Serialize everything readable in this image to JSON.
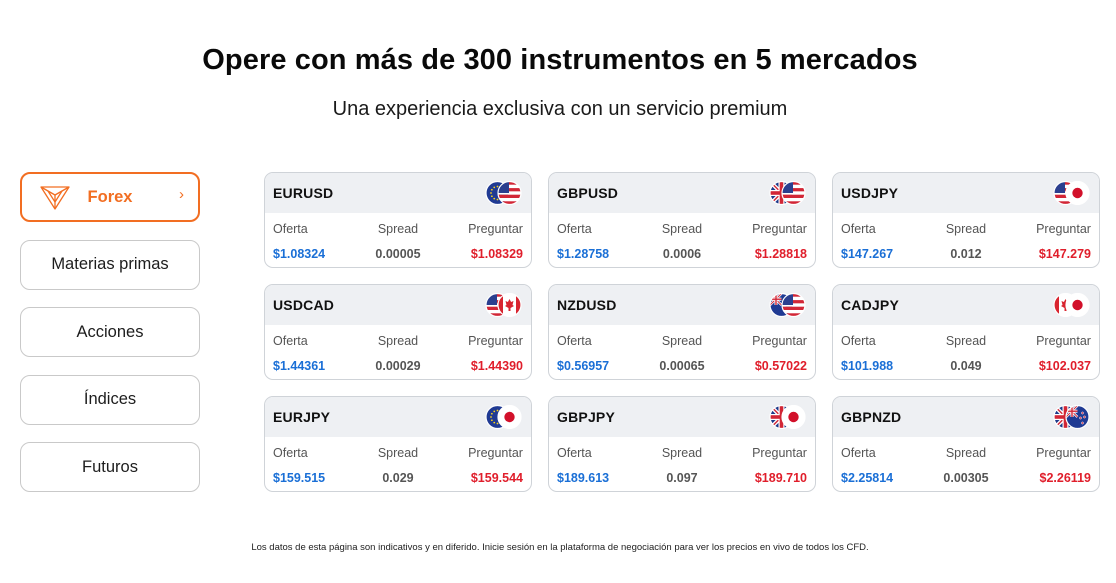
{
  "header": {
    "title": "Opere con más de 300 instrumentos en 5 mercados",
    "subtitle": "Una experiencia exclusiva con un servicio premium"
  },
  "markets": [
    {
      "label": "Forex",
      "active": true
    },
    {
      "label": "Materias primas",
      "active": false
    },
    {
      "label": "Acciones",
      "active": false
    },
    {
      "label": "Índices",
      "active": false
    },
    {
      "label": "Futuros",
      "active": false
    }
  ],
  "labels": {
    "bid": "Oferta",
    "spread": "Spread",
    "ask": "Preguntar"
  },
  "colors": {
    "accent": "#f26e22",
    "bid": "#1a6fd6",
    "ask": "#e01e2b"
  },
  "instruments": [
    {
      "symbol": "EURUSD",
      "bid": "$1.08324",
      "spread": "0.00005",
      "ask": "$1.08329",
      "flags": [
        "eu-flag-icon",
        "us-flag-icon"
      ]
    },
    {
      "symbol": "GBPUSD",
      "bid": "$1.28758",
      "spread": "0.0006",
      "ask": "$1.28818",
      "flags": [
        "uk-flag-icon",
        "us-flag-icon"
      ]
    },
    {
      "symbol": "USDJPY",
      "bid": "$147.267",
      "spread": "0.012",
      "ask": "$147.279",
      "flags": [
        "us-flag-icon",
        "jp-flag-icon"
      ]
    },
    {
      "symbol": "USDCAD",
      "bid": "$1.44361",
      "spread": "0.00029",
      "ask": "$1.44390",
      "flags": [
        "us-flag-icon",
        "ca-flag-icon"
      ]
    },
    {
      "symbol": "NZDUSD",
      "bid": "$0.56957",
      "spread": "0.00065",
      "ask": "$0.57022",
      "flags": [
        "nz-flag-icon",
        "us-flag-icon"
      ]
    },
    {
      "symbol": "CADJPY",
      "bid": "$101.988",
      "spread": "0.049",
      "ask": "$102.037",
      "flags": [
        "ca-flag-icon",
        "jp-flag-icon"
      ]
    },
    {
      "symbol": "EURJPY",
      "bid": "$159.515",
      "spread": "0.029",
      "ask": "$159.544",
      "flags": [
        "eu-flag-icon",
        "jp-flag-icon"
      ]
    },
    {
      "symbol": "GBPJPY",
      "bid": "$189.613",
      "spread": "0.097",
      "ask": "$189.710",
      "flags": [
        "uk-flag-icon",
        "jp-flag-icon"
      ]
    },
    {
      "symbol": "GBPNZD",
      "bid": "$2.25814",
      "spread": "0.00305",
      "ask": "$2.26119",
      "flags": [
        "uk-flag-icon",
        "nz-flag-icon"
      ]
    }
  ],
  "footnote": "Los datos de esta página son indicativos y en diferido. Inicie sesión en la plataforma de negociación para ver los precios en vivo de todos los CFD."
}
